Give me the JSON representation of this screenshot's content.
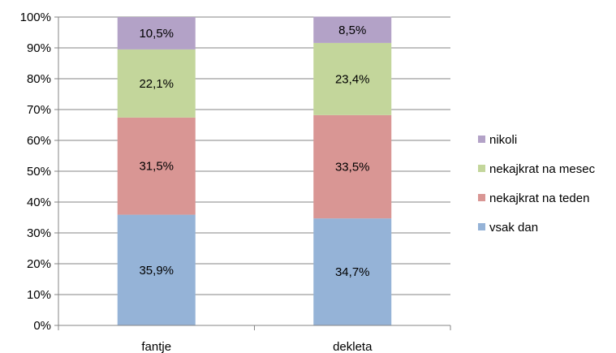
{
  "chart_data": {
    "type": "bar",
    "stacked": true,
    "percent_axis": true,
    "categories": [
      "fantje",
      "dekleta"
    ],
    "series": [
      {
        "name": "vsak dan",
        "values": [
          35.9,
          34.7
        ],
        "labels": [
          "35,9%",
          "34,7%"
        ],
        "color": "#95b3d7"
      },
      {
        "name": "nekajkrat na teden",
        "values": [
          31.5,
          33.5
        ],
        "labels": [
          "31,5%",
          "33,5%"
        ],
        "color": "#d99694"
      },
      {
        "name": "nekajkrat na mesec",
        "values": [
          22.1,
          23.4
        ],
        "labels": [
          "22,1%",
          "23,4%"
        ],
        "color": "#c3d69b"
      },
      {
        "name": "nikoli",
        "values": [
          10.5,
          8.5
        ],
        "labels": [
          "10,5%",
          "8,5%"
        ],
        "color": "#b3a2c7"
      }
    ],
    "y_ticks": [
      "0%",
      "10%",
      "20%",
      "30%",
      "40%",
      "50%",
      "60%",
      "70%",
      "80%",
      "90%",
      "100%"
    ],
    "ylim": [
      0,
      100
    ],
    "grid": true,
    "legend_position": "right",
    "legend_order": [
      "nikoli",
      "nekajkrat na mesec",
      "nekajkrat na teden",
      "vsak dan"
    ],
    "title": "",
    "xlabel": "",
    "ylabel": ""
  },
  "colors": {
    "gridline": "#868686",
    "axis": "#868686"
  }
}
